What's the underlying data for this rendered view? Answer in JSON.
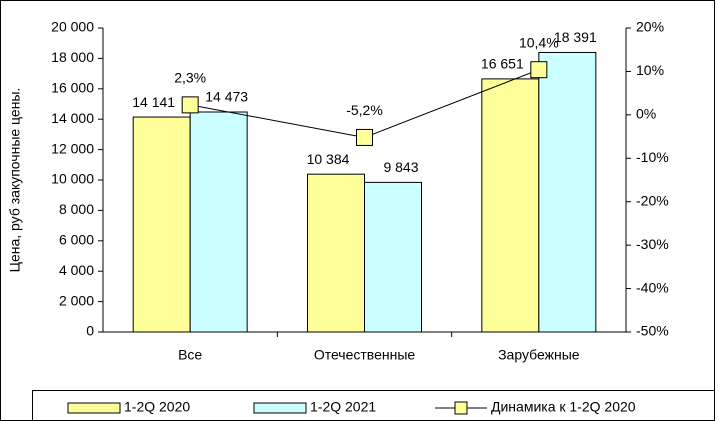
{
  "chart_data": {
    "type": "bar",
    "y_label": "Цена, руб закупочные цены.",
    "categories": [
      "Все",
      "Отечественные",
      "Зарубежные"
    ],
    "series": [
      {
        "name": "1-2Q 2020",
        "type": "bar",
        "color": "#ffff99",
        "values": [
          14141,
          10384,
          16651
        ],
        "value_labels": [
          "14 141",
          "10 384",
          "16 651"
        ]
      },
      {
        "name": "1-2Q 2021",
        "type": "bar",
        "color": "#ccffff",
        "values": [
          14473,
          9843,
          18391
        ],
        "value_labels": [
          "14 473",
          "9 843",
          "18 391"
        ]
      },
      {
        "name": "Динамика к 1-2Q 2020",
        "type": "line",
        "axis": "y2",
        "color": "#000000",
        "marker_color": "#ffff99",
        "values": [
          2.3,
          -5.2,
          10.4
        ],
        "value_labels": [
          "2,3%",
          "-5,2%",
          "10,4%"
        ]
      }
    ],
    "ylim": [
      0,
      20000
    ],
    "yticks": [
      0,
      {
        "value": 2000,
        "label": "2 000"
      },
      {
        "value": 4000,
        "label": "4 000"
      },
      {
        "value": 6000,
        "label": "6 000"
      },
      {
        "value": 8000,
        "label": "8 000"
      },
      {
        "value": 10000,
        "label": "10 000"
      },
      {
        "value": 12000,
        "label": "12 000"
      },
      {
        "value": 14000,
        "label": "14 000"
      },
      {
        "value": 16000,
        "label": "16 000"
      },
      {
        "value": 18000,
        "label": "18 000"
      },
      {
        "value": 20000,
        "label": "20 000"
      }
    ],
    "y2lim": [
      -50,
      20
    ],
    "y2ticks": [
      {
        "value": -50,
        "label": "-50%"
      },
      {
        "value": -40,
        "label": "-40%"
      },
      {
        "value": -30,
        "label": "-30%"
      },
      {
        "value": -20,
        "label": "-20%"
      },
      {
        "value": -10,
        "label": "-10%"
      },
      {
        "value": 0,
        "label": "0%"
      },
      {
        "value": 10,
        "label": "10%"
      },
      {
        "value": 20,
        "label": "20%"
      }
    ],
    "legend": "bottom"
  }
}
